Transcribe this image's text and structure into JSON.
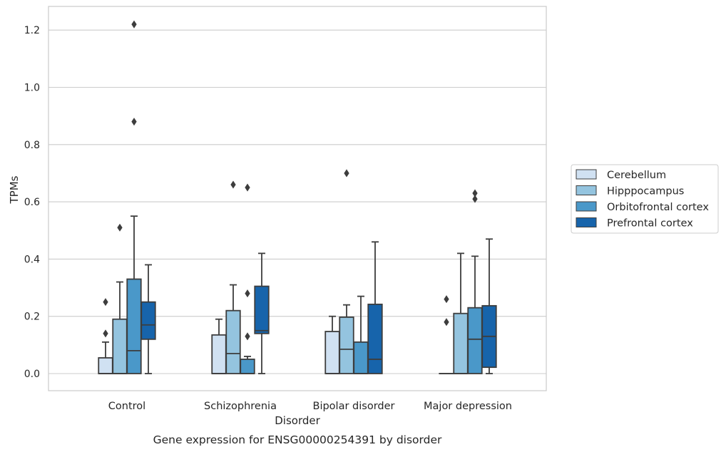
{
  "chart_data": {
    "type": "box",
    "title": "",
    "caption": "Gene expression for ENSG00000254391 by disorder",
    "xlabel": "Disorder",
    "ylabel": "TPMs",
    "ylim": [
      -0.06,
      1.28
    ],
    "yticks": [
      0.0,
      0.2,
      0.4,
      0.6,
      0.8,
      1.0,
      1.2
    ],
    "ytick_labels": [
      "0.0",
      "0.2",
      "0.4",
      "0.6",
      "0.8",
      "1.0",
      "1.2"
    ],
    "grid": "horizontal",
    "legend_position": "right",
    "categories": [
      "Control",
      "Schizophrenia",
      "Bipolar disorder",
      "Major depression"
    ],
    "series": [
      {
        "name": "Cerebellum",
        "color": "#d0e1f2",
        "boxes": [
          {
            "min": 0.0,
            "q1": 0.0,
            "median": 0.0,
            "q3": 0.055,
            "max": 0.11,
            "outliers": [
              0.14,
              0.25
            ]
          },
          {
            "min": 0.0,
            "q1": 0.0,
            "median": 0.0,
            "q3": 0.135,
            "max": 0.19,
            "outliers": []
          },
          {
            "min": 0.0,
            "q1": 0.0,
            "median": 0.0,
            "q3": 0.147,
            "max": 0.2,
            "outliers": []
          },
          {
            "min": 0.0,
            "q1": 0.0,
            "median": 0.0,
            "q3": 0.0,
            "max": 0.0,
            "outliers": [
              0.18,
              0.26
            ]
          }
        ]
      },
      {
        "name": "Hipppocampus",
        "color": "#94c4df",
        "boxes": [
          {
            "min": 0.0,
            "q1": 0.0,
            "median": 0.0,
            "q3": 0.19,
            "max": 0.32,
            "outliers": [
              0.51
            ]
          },
          {
            "min": 0.0,
            "q1": 0.0,
            "median": 0.07,
            "q3": 0.22,
            "max": 0.31,
            "outliers": [
              0.66
            ]
          },
          {
            "min": 0.0,
            "q1": 0.0,
            "median": 0.085,
            "q3": 0.197,
            "max": 0.24,
            "outliers": [
              0.7
            ]
          },
          {
            "min": 0.0,
            "q1": 0.0,
            "median": 0.0,
            "q3": 0.21,
            "max": 0.42,
            "outliers": []
          }
        ]
      },
      {
        "name": "Orbitofrontal cortex",
        "color": "#4a98c9",
        "boxes": [
          {
            "min": 0.0,
            "q1": 0.0,
            "median": 0.08,
            "q3": 0.33,
            "max": 0.55,
            "outliers": [
              0.88,
              1.22
            ]
          },
          {
            "min": 0.0,
            "q1": 0.0,
            "median": 0.0,
            "q3": 0.05,
            "max": 0.06,
            "outliers": [
              0.13,
              0.28,
              0.65
            ]
          },
          {
            "min": 0.0,
            "q1": 0.0,
            "median": 0.0,
            "q3": 0.11,
            "max": 0.27,
            "outliers": []
          },
          {
            "min": 0.0,
            "q1": 0.0,
            "median": 0.12,
            "q3": 0.23,
            "max": 0.41,
            "outliers": [
              0.61,
              0.63
            ]
          }
        ]
      },
      {
        "name": "Prefrontal cortex",
        "color": "#1764ab",
        "boxes": [
          {
            "min": 0.0,
            "q1": 0.12,
            "median": 0.17,
            "q3": 0.25,
            "max": 0.38,
            "outliers": []
          },
          {
            "min": 0.0,
            "q1": 0.14,
            "median": 0.15,
            "q3": 0.305,
            "max": 0.42,
            "outliers": []
          },
          {
            "min": 0.0,
            "q1": 0.0,
            "median": 0.05,
            "q3": 0.242,
            "max": 0.46,
            "outliers": []
          },
          {
            "min": 0.0,
            "q1": 0.022,
            "median": 0.13,
            "q3": 0.237,
            "max": 0.47,
            "outliers": []
          }
        ]
      }
    ]
  }
}
